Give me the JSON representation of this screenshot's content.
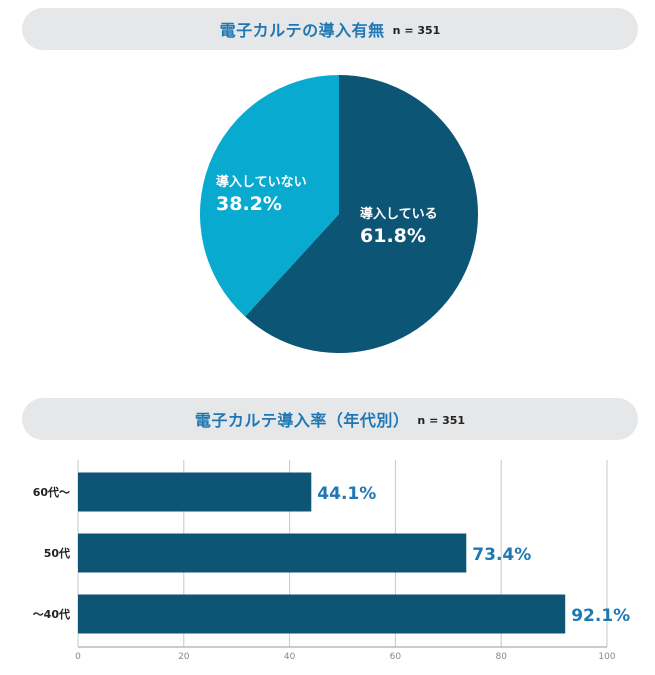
{
  "chart_data": [
    {
      "type": "pie",
      "title": "電子カルテの導入有無",
      "n_label": "n = 351",
      "slices": [
        {
          "label": "導入している",
          "value": 61.8,
          "value_label": "61.8%",
          "color": "#0d5575"
        },
        {
          "label": "導入していない",
          "value": 38.2,
          "value_label": "38.2%",
          "color": "#09aad0"
        }
      ]
    },
    {
      "type": "bar",
      "orientation": "horizontal",
      "title": "電子カルテ導入率（年代別）",
      "n_label": "n = 351",
      "categories": [
        "60代～",
        "50代",
        "～40代"
      ],
      "values": [
        44.1,
        73.4,
        92.1
      ],
      "value_labels": [
        "44.1%",
        "73.4%",
        "92.1%"
      ],
      "xlim": [
        0,
        100
      ],
      "xticks": [
        "0",
        "20",
        "40",
        "60",
        "80",
        "100"
      ],
      "grid": true,
      "bar_color": "#0d5575",
      "label_color": "#1f78b4"
    }
  ]
}
